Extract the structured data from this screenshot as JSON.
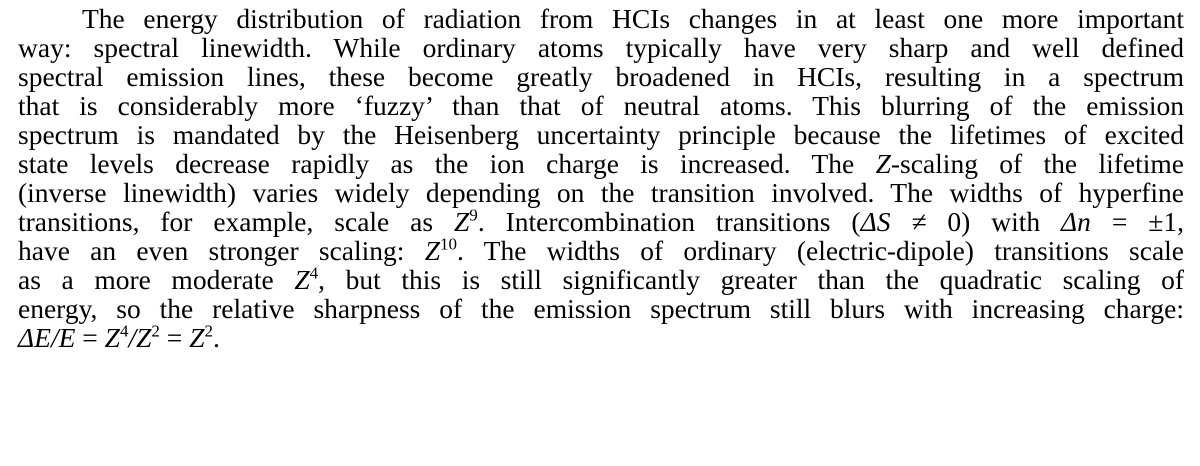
{
  "paragraph": {
    "lines": [
      "The energy distribution of radiation from HCIs changes in at least one more important",
      "way: spectral linewidth.  While ordinary atoms typically have very sharp and well defined",
      "spectral emission lines, these become greatly broadened in HCIs, resulting in a spectrum",
      "that is considerably more ‘fuzzy’ than that of neutral atoms.  This blurring of the emission",
      "spectrum is mandated by the Heisenberg uncertainty principle because the lifetimes of excited",
      "state levels decrease rapidly as the ion charge is increased.  The ",
      "(inverse linewidth) varies widely depending on the transition involved. The widths of hyperfine",
      "transitions, for example, scale as ",
      "have an even stronger scaling: ",
      "as a more moderate ",
      "energy, so the relative sharpness of the emission spectrum still blurs with increasing charge:",
      ""
    ],
    "l5_z": "Z",
    "l5_b": "-scaling of the lifetime",
    "l7_z9": "Z",
    "l7_sup": "9",
    "l7_b": ".  Intercombination transitions (",
    "l7_ds": "ΔS ≠ ",
    "l7_c": "0) with ",
    "l7_dn": "Δn",
    "l7_d": " = ±1,",
    "l8_z": "Z",
    "l8_sup": "10",
    "l8_b": ".  The widths of ordinary (electric-dipole) transitions scale",
    "l9_z": "Z",
    "l9_sup": "4",
    "l9_b": ", but this is still significantly greater than the quadratic scaling of",
    "l11_a": "ΔE/E",
    "l11_b": " = ",
    "l11_z4": "Z",
    "l11_sup4": "4",
    "l11_slash": "/",
    "l11_z2": "Z",
    "l11_sup2": "2",
    "l11_eq": " = ",
    "l11_z2b": "Z",
    "l11_sup2b": "2",
    "l11_end": "."
  }
}
